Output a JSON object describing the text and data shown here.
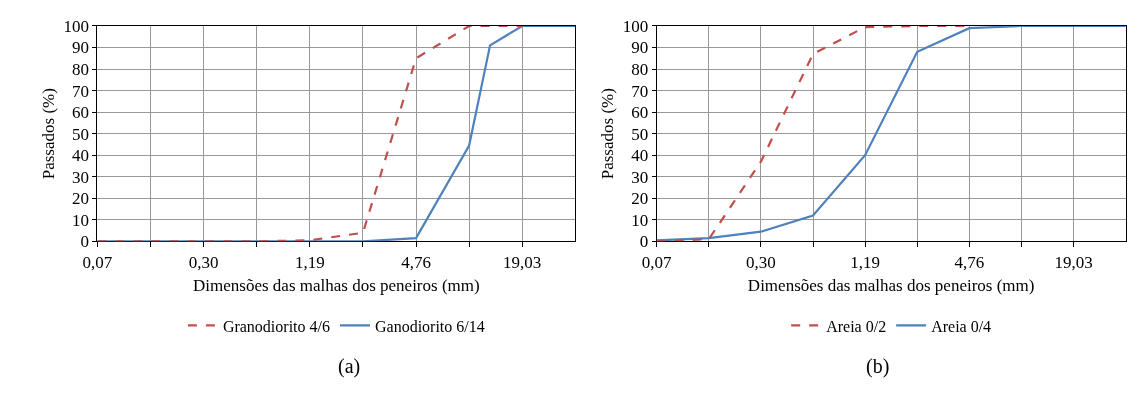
{
  "chart_data": [
    {
      "type": "line",
      "xlabel": "Dimensões das malhas dos peneiros (mm)",
      "ylabel": "Passados (%)",
      "annotations": [
        "(a)"
      ],
      "log": "x",
      "grid": true,
      "legend": "bottom",
      "marker": "none",
      "xlim": [
        0.0743,
        38.06
      ],
      "xticks": [
        {
          "value": 0.0743,
          "label": "0,07"
        },
        {
          "value": 0.1487,
          "label": null
        },
        {
          "value": 0.2973,
          "label": "0,30"
        },
        {
          "value": 0.5947,
          "label": null
        },
        {
          "value": 1.189,
          "label": "1,19"
        },
        {
          "value": 2.379,
          "label": null
        },
        {
          "value": 4.757,
          "label": "4,76"
        },
        {
          "value": 9.514,
          "label": null
        },
        {
          "value": 19.03,
          "label": "19,03"
        }
      ],
      "ylim": [
        0,
        100
      ],
      "yticks": [
        0,
        10,
        20,
        30,
        40,
        50,
        60,
        70,
        80,
        90,
        100
      ],
      "series": [
        {
          "name": "Granodiorito 4/6",
          "color": "#c0504d",
          "line_style": "dashed",
          "x": [
            0.0743,
            0.1487,
            0.2973,
            0.5947,
            1.189,
            2.379,
            4.757,
            9.514,
            19.03
          ],
          "values": [
            0,
            0,
            0,
            0,
            0.5,
            4,
            85,
            100,
            100
          ]
        },
        {
          "name": "Ganodiorito 6/14",
          "color": "#4f81bd",
          "line_style": "solid",
          "x": [
            0.0743,
            0.1487,
            0.2973,
            0.5947,
            1.189,
            2.379,
            4.757,
            9.514,
            12.5,
            19.03,
            38.06
          ],
          "values": [
            0,
            0,
            0,
            0,
            0,
            0,
            1.5,
            44.5,
            91,
            100,
            100
          ]
        }
      ]
    },
    {
      "type": "line",
      "xlabel": "Dimensões das malhas dos peneiros (mm)",
      "ylabel": "Passados (%)",
      "annotations": [
        "(b)"
      ],
      "log": "x",
      "grid": true,
      "legend": "bottom",
      "marker": "none",
      "xlim": [
        0.0743,
        38.06
      ],
      "xticks": [
        {
          "value": 0.0743,
          "label": "0,07"
        },
        {
          "value": 0.1487,
          "label": null
        },
        {
          "value": 0.2973,
          "label": "0,30"
        },
        {
          "value": 0.5947,
          "label": null
        },
        {
          "value": 1.189,
          "label": "1,19"
        },
        {
          "value": 2.379,
          "label": null
        },
        {
          "value": 4.757,
          "label": "4,76"
        },
        {
          "value": 9.514,
          "label": null
        },
        {
          "value": 19.03,
          "label": "19,03"
        }
      ],
      "ylim": [
        0,
        100
      ],
      "yticks": [
        0,
        10,
        20,
        30,
        40,
        50,
        60,
        70,
        80,
        90,
        100
      ],
      "series": [
        {
          "name": "Areia 0/2",
          "color": "#c0504d",
          "line_style": "dashed",
          "x": [
            0.0743,
            0.1487,
            0.2973,
            0.5947,
            1.189,
            2.379,
            4.757
          ],
          "values": [
            0,
            1,
            37,
            87,
            99.5,
            100,
            100
          ]
        },
        {
          "name": "Areia 0/4",
          "color": "#4f81bd",
          "line_style": "solid",
          "x": [
            0.0743,
            0.1487,
            0.2973,
            0.5947,
            1.189,
            2.379,
            4.757,
            9.514,
            19.03,
            38.06
          ],
          "values": [
            0.5,
            1.5,
            4.5,
            12,
            40,
            88,
            99,
            100,
            100,
            100
          ]
        }
      ]
    }
  ]
}
